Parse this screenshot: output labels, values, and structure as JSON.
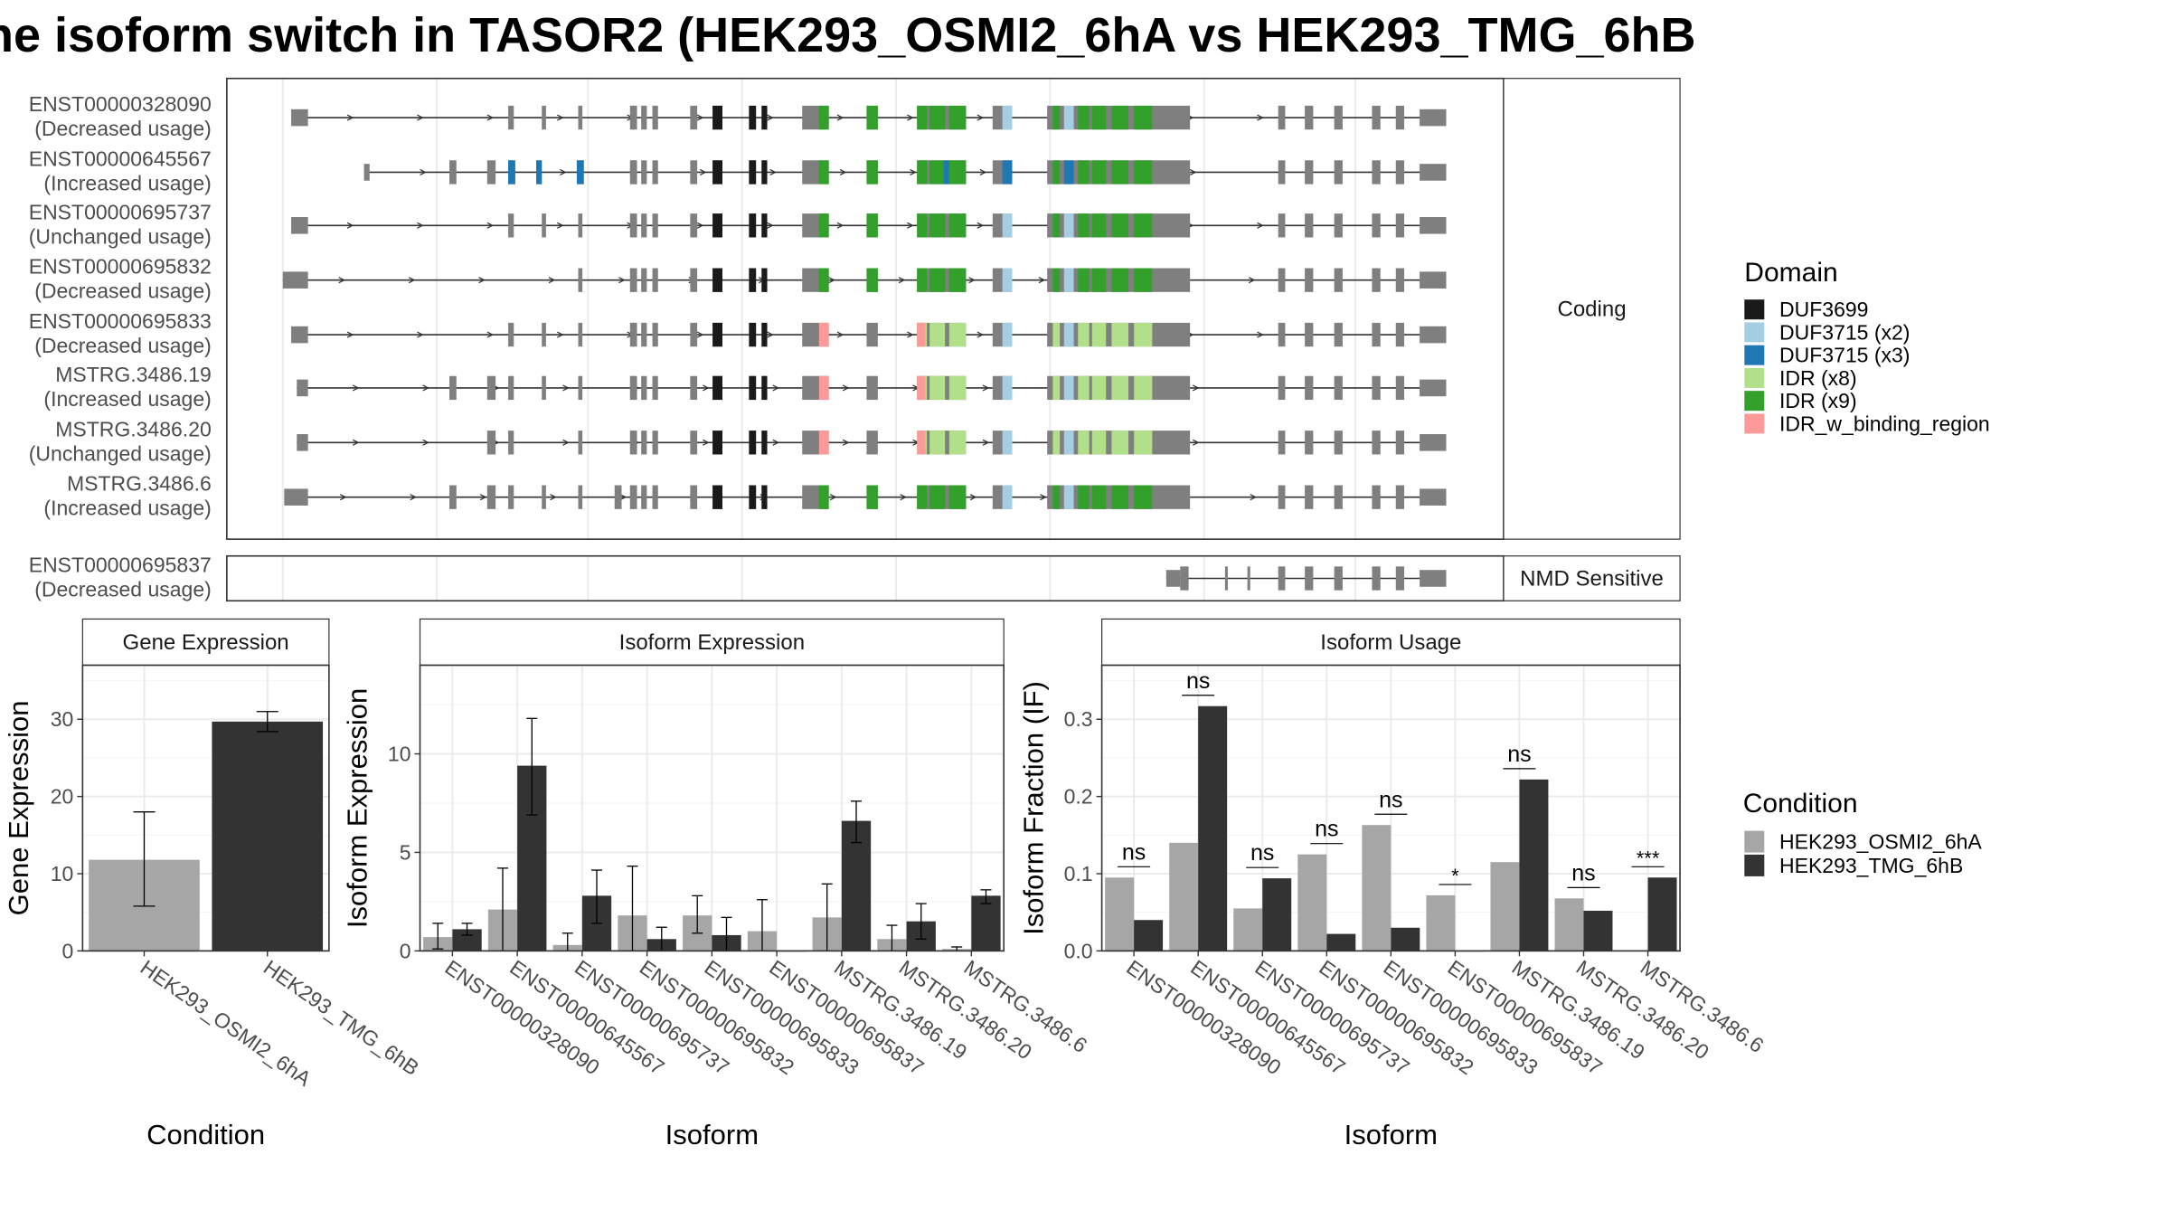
{
  "title": "ne isoform switch in TASOR2 (HEK293_OSMI2_6hA vs HEK293_TMG_6hB",
  "colors": {
    "exon": "#7f7f7f",
    "DUF3699": "#1a1a1a",
    "DUF3715_x2": "#a6cee3",
    "DUF3715_x3": "#1f78b4",
    "IDR_x8": "#b2df8a",
    "IDR_x9": "#33a02c",
    "IDR_w_binding_region": "#fb9a99",
    "cond_a": "#a6a6a6",
    "cond_b": "#333333"
  },
  "structure": {
    "facet_coding": "Coding",
    "facet_nmd": "NMD Sensitive",
    "transcripts_coding": [
      {
        "id": "ENST00000328090",
        "usage": "(Decreased usage)"
      },
      {
        "id": "ENST00000645567",
        "usage": "(Increased usage)"
      },
      {
        "id": "ENST00000695737",
        "usage": "(Unchanged usage)"
      },
      {
        "id": "ENST00000695832",
        "usage": "(Decreased usage)"
      },
      {
        "id": "ENST00000695833",
        "usage": "(Decreased usage)"
      },
      {
        "id": "MSTRG.3486.19",
        "usage": "(Increased usage)"
      },
      {
        "id": "MSTRG.3486.20",
        "usage": "(Unchanged usage)"
      },
      {
        "id": "MSTRG.3486.6",
        "usage": "(Increased usage)"
      }
    ],
    "transcripts_nmd": [
      {
        "id": "ENST00000695837",
        "usage": "(Decreased usage)"
      }
    ]
  },
  "domain_legend": {
    "title": "Domain",
    "items": [
      {
        "label": "DUF3699",
        "color": "#1a1a1a"
      },
      {
        "label": "DUF3715 (x2)",
        "color": "#a6cee3"
      },
      {
        "label": "DUF3715 (x3)",
        "color": "#1f78b4"
      },
      {
        "label": "IDR (x8)",
        "color": "#b2df8a"
      },
      {
        "label": "IDR (x9)",
        "color": "#33a02c"
      },
      {
        "label": "IDR_w_binding_region",
        "color": "#fb9a99"
      }
    ]
  },
  "condition_legend": {
    "title": "Condition",
    "items": [
      {
        "label": "HEK293_OSMI2_6hA",
        "color": "#a6a6a6"
      },
      {
        "label": "HEK293_TMG_6hB",
        "color": "#333333"
      }
    ]
  },
  "chart_data": [
    {
      "type": "bar",
      "title": "Gene Expression",
      "xlabel": "Condition",
      "ylabel": "Gene Expression",
      "ylim": [
        0,
        37
      ],
      "yticks": [
        0,
        10,
        20,
        30
      ],
      "categories": [
        "HEK293_OSMI2_6hA",
        "HEK293_TMG_6hB"
      ],
      "values": [
        11.8,
        29.7
      ],
      "error_low": [
        5.8,
        28.4
      ],
      "error_high": [
        18.0,
        31.0
      ]
    },
    {
      "type": "bar",
      "title": "Isoform Expression",
      "xlabel": "Isoform",
      "ylabel": "Isoform Expression",
      "ylim": [
        0,
        14.5
      ],
      "yticks": [
        0,
        5,
        10
      ],
      "categories": [
        "ENST00000328090",
        "ENST00000645567",
        "ENST00000695737",
        "ENST00000695832",
        "ENST00000695833",
        "ENST00000695837",
        "MSTRG.3486.19",
        "MSTRG.3486.20",
        "MSTRG.3486.6"
      ],
      "series": [
        {
          "name": "HEK293_OSMI2_6hA",
          "values": [
            0.7,
            2.1,
            0.3,
            1.8,
            1.8,
            1.0,
            1.7,
            0.6,
            0.1
          ],
          "error_low": [
            0.1,
            0.0,
            0.0,
            0.0,
            0.9,
            0.0,
            0.0,
            0.0,
            0.0
          ],
          "error_high": [
            1.4,
            4.2,
            0.9,
            4.3,
            2.8,
            2.6,
            3.4,
            1.3,
            0.2
          ]
        },
        {
          "name": "HEK293_TMG_6hB",
          "values": [
            1.1,
            9.4,
            2.8,
            0.6,
            0.8,
            0.0,
            6.6,
            1.5,
            2.8
          ],
          "error_low": [
            0.8,
            6.9,
            1.4,
            0.0,
            0.0,
            0.0,
            5.5,
            0.6,
            2.4
          ],
          "error_high": [
            1.4,
            11.8,
            4.1,
            1.2,
            1.7,
            0.0,
            7.6,
            2.4,
            3.1
          ]
        }
      ]
    },
    {
      "type": "bar",
      "title": "Isoform Usage",
      "xlabel": "Isoform",
      "ylabel": "Isoform Fraction (IF)",
      "ylim": [
        0,
        0.37
      ],
      "yticks": [
        0.0,
        0.1,
        0.2,
        0.3
      ],
      "tick_labels": [
        "0.0",
        "0.1",
        "0.2",
        "0.3"
      ],
      "categories": [
        "ENST00000328090",
        "ENST00000645567",
        "ENST00000695737",
        "ENST00000695832",
        "ENST00000695833",
        "ENST00000695837",
        "MSTRG.3486.19",
        "MSTRG.3486.20",
        "MSTRG.3486.6"
      ],
      "series": [
        {
          "name": "HEK293_OSMI2_6hA",
          "values": [
            0.095,
            0.14,
            0.055,
            0.125,
            0.163,
            0.072,
            0.115,
            0.068,
            0.001
          ]
        },
        {
          "name": "HEK293_TMG_6hB",
          "values": [
            0.04,
            0.317,
            0.094,
            0.022,
            0.03,
            0.0,
            0.222,
            0.052,
            0.095
          ]
        }
      ],
      "significance": [
        "ns",
        "ns",
        "ns",
        "ns",
        "ns",
        "*",
        "ns",
        "ns",
        "***"
      ]
    }
  ]
}
